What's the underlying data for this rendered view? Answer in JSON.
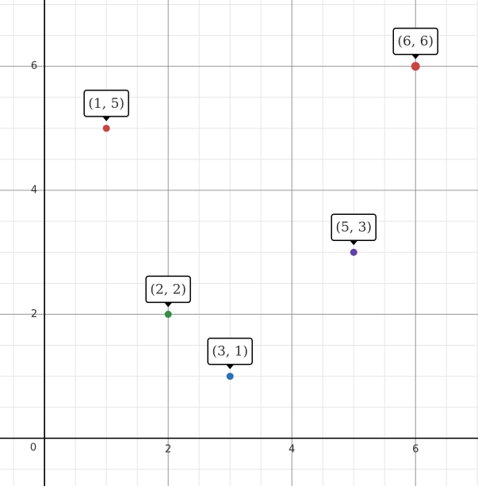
{
  "chart_data": {
    "type": "scatter",
    "x": [
      1,
      2,
      3,
      5,
      6
    ],
    "values": [
      5,
      2,
      1,
      3,
      6
    ],
    "value_labels": [
      "(1, 5)",
      "(2, 2)",
      "(3, 1)",
      "(5, 3)",
      "(6, 6)"
    ],
    "colors": [
      "#c74440",
      "#388c46",
      "#2d70b3",
      "#6042a6",
      "#c74440"
    ],
    "sizes": [
      4.5,
      4.5,
      4.5,
      4.5,
      5.5
    ],
    "xlim": [
      -0.72,
      7.01
    ],
    "ylim": [
      -0.77,
      7.07
    ],
    "xticks": [
      0,
      2,
      4,
      6
    ],
    "yticks": [
      2,
      4,
      6
    ],
    "minor_grid": 0.5,
    "grid": true
  }
}
